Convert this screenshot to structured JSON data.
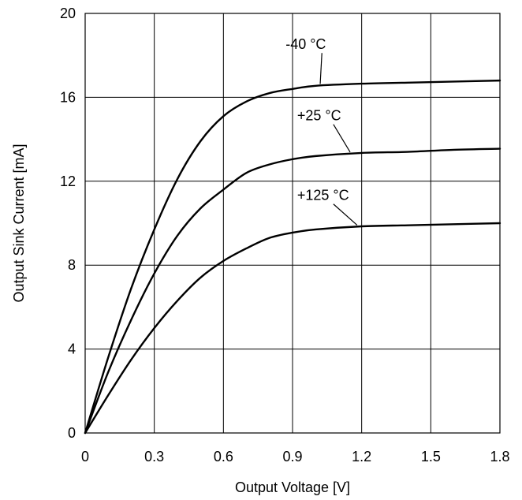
{
  "chart_data": {
    "type": "line",
    "xlabel": "Output Voltage [V]",
    "ylabel": "Output Sink Current [mA]",
    "xlim": [
      0,
      1.8
    ],
    "ylim": [
      0,
      20
    ],
    "xticks": [
      0,
      0.3,
      0.6,
      0.9,
      1.2,
      1.5,
      1.8
    ],
    "xtick_labels": [
      "0",
      "0.3",
      "0.6",
      "0.9",
      "1.2",
      "1.5",
      "1.8"
    ],
    "yticks": [
      0,
      4,
      8,
      12,
      16,
      20
    ],
    "ytick_labels": [
      "0",
      "4",
      "8",
      "12",
      "16",
      "20"
    ],
    "grid": true,
    "legend": "none",
    "line_color": "#000000",
    "series": [
      {
        "name": "-40 °C",
        "x": [
          0,
          0.1,
          0.2,
          0.3,
          0.4,
          0.5,
          0.6,
          0.7,
          0.8,
          0.9,
          1.0,
          1.2,
          1.4,
          1.6,
          1.8
        ],
        "y": [
          0,
          3.6,
          6.9,
          9.7,
          12.1,
          13.9,
          15.1,
          15.8,
          16.2,
          16.4,
          16.55,
          16.65,
          16.7,
          16.75,
          16.8
        ]
      },
      {
        "name": "+25 °C",
        "x": [
          0,
          0.1,
          0.2,
          0.3,
          0.4,
          0.5,
          0.6,
          0.7,
          0.8,
          0.9,
          1.0,
          1.2,
          1.4,
          1.6,
          1.8
        ],
        "y": [
          0,
          2.9,
          5.4,
          7.6,
          9.4,
          10.7,
          11.6,
          12.4,
          12.8,
          13.05,
          13.2,
          13.35,
          13.4,
          13.5,
          13.55
        ]
      },
      {
        "name": "+125 °C",
        "x": [
          0,
          0.1,
          0.2,
          0.3,
          0.4,
          0.5,
          0.6,
          0.7,
          0.8,
          0.9,
          1.0,
          1.2,
          1.4,
          1.6,
          1.8
        ],
        "y": [
          0,
          1.8,
          3.5,
          5.0,
          6.3,
          7.4,
          8.2,
          8.8,
          9.3,
          9.55,
          9.7,
          9.85,
          9.9,
          9.95,
          10.0
        ]
      }
    ],
    "annotations": [
      {
        "text": "-40 °C",
        "series": 0,
        "leader_x": 1.02,
        "label_x": 0.87,
        "label_y": 18.3
      },
      {
        "text": "+25 °C",
        "series": 1,
        "leader_x": 1.15,
        "label_x": 0.92,
        "label_y": 14.9
      },
      {
        "text": "+125 °C",
        "series": 2,
        "leader_x": 1.18,
        "label_x": 0.92,
        "label_y": 11.1
      }
    ]
  }
}
